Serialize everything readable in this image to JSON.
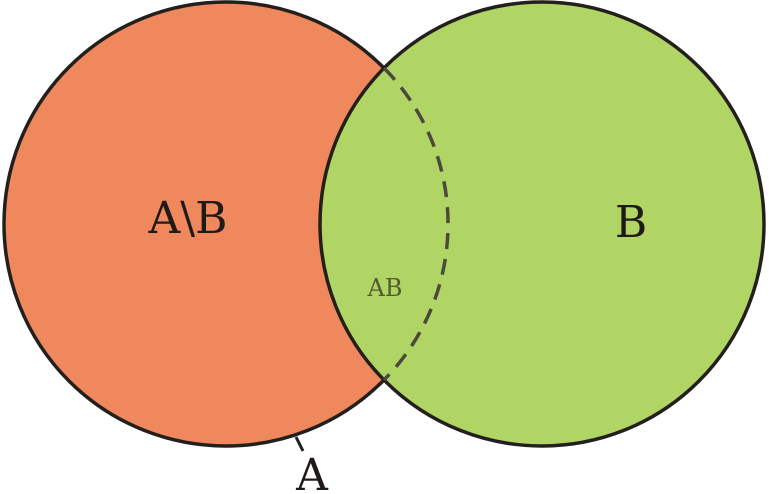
{
  "colors": {
    "set_a_fill": "#ef885c",
    "set_b_fill": "#b0d564",
    "outline": "#231f1c",
    "intersection_boundary": "#4a4a3a"
  },
  "labels": {
    "a_minus_b": "A\\B",
    "b": "B",
    "intersection": "AB",
    "a": "A"
  }
}
